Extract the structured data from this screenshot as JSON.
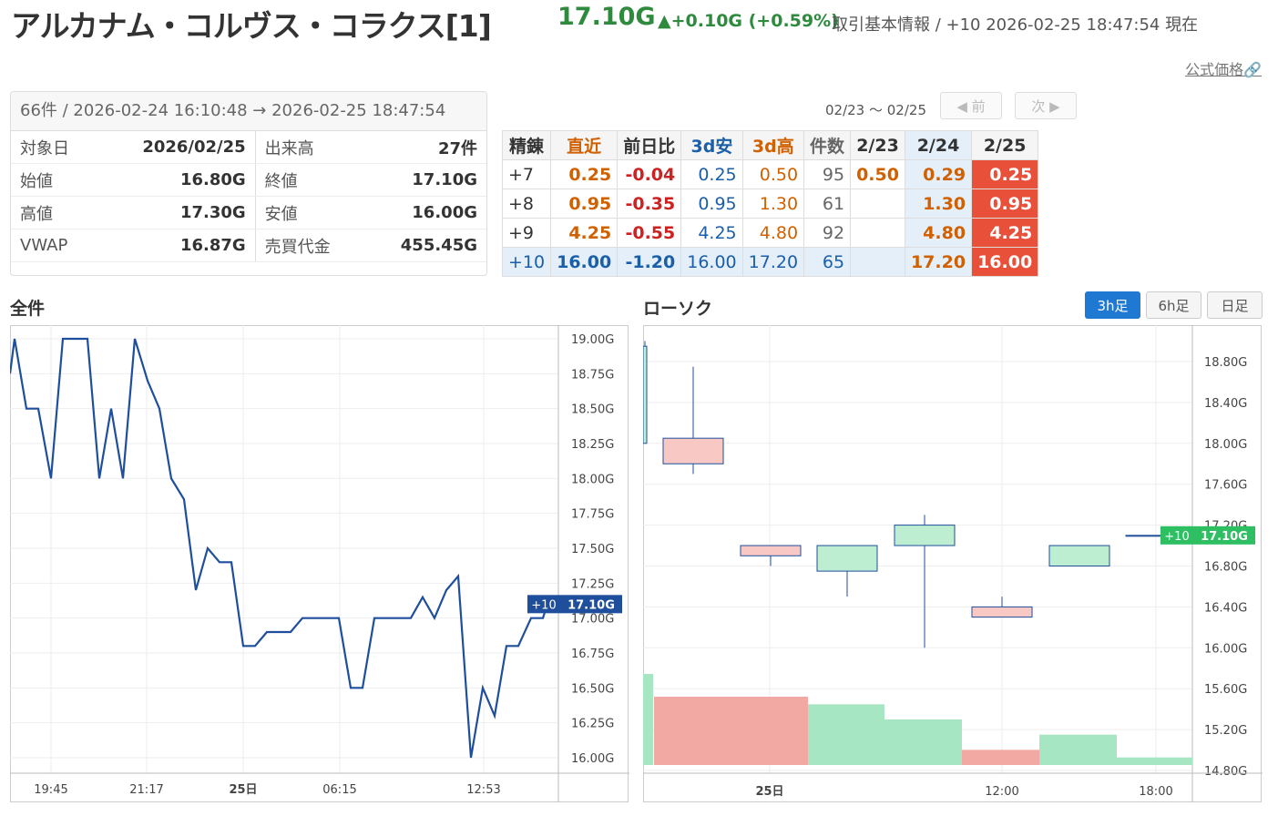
{
  "header": {
    "title": "アルカナム・コルヴス・コラクス[1]",
    "price": "17.10G",
    "change": "▲+0.10G (+0.59%)",
    "subinfo": "取引基本情報 / +10  2026-02-25 18:47:54 現在",
    "official_link": "公式価格🔗"
  },
  "summary": {
    "head": "66件 / 2026-02-24 16:10:48 → 2026-02-25 18:47:54",
    "rows": [
      {
        "l1": "対象日",
        "v1": "2026/02/25",
        "l2": "出来高",
        "v2": "27件"
      },
      {
        "l1": "始値",
        "v1": "16.80G",
        "l2": "終値",
        "v2": "17.10G"
      },
      {
        "l1": "高値",
        "v1": "17.30G",
        "l2": "安値",
        "v2": "16.00G"
      },
      {
        "l1": "VWAP",
        "v1": "16.87G",
        "l2": "売買代金",
        "v2": "455.45G"
      }
    ]
  },
  "refine": {
    "range": "02/23 〜 02/25",
    "prev": "◀ 前",
    "next": "次 ▶",
    "headers": [
      "精錬",
      "直近",
      "前日比",
      "3d安",
      "3d高",
      "件数",
      "2/23",
      "2/24",
      "2/25"
    ],
    "rows": [
      {
        "name": "+7",
        "recent": "0.25",
        "diff": "-0.04",
        "low": "0.25",
        "high": "0.50",
        "count": "95",
        "d1": "0.50",
        "d2": "0.29",
        "d3": "0.25"
      },
      {
        "name": "+8",
        "recent": "0.95",
        "diff": "-0.35",
        "low": "0.95",
        "high": "1.30",
        "count": "61",
        "d1": "",
        "d2": "1.30",
        "d3": "0.95"
      },
      {
        "name": "+9",
        "recent": "4.25",
        "diff": "-0.55",
        "low": "4.25",
        "high": "4.80",
        "count": "92",
        "d1": "",
        "d2": "4.80",
        "d3": "4.25"
      },
      {
        "name": "+10",
        "recent": "16.00",
        "diff": "-1.20",
        "low": "16.00",
        "high": "17.20",
        "count": "65",
        "d1": "",
        "d2": "17.20",
        "d3": "16.00"
      }
    ],
    "colors": {
      "orange": "#d06000",
      "red_cell": "#e8503a",
      "blue_cell": "#e4effa"
    }
  },
  "line_chart": {
    "title": "全件",
    "marker_tag": "+10",
    "marker_value": "17.10G",
    "y_ticks": [
      "19.00G",
      "18.75G",
      "18.50G",
      "18.25G",
      "18.00G",
      "17.75G",
      "17.50G",
      "17.25G",
      "17.00G",
      "16.75G",
      "16.50G",
      "16.25G",
      "16.00G"
    ],
    "x_ticks": [
      "19:45",
      "21:17",
      "25日",
      "06:15",
      "12:53"
    ]
  },
  "candle_chart": {
    "title": "ローソク",
    "tabs": [
      "3h足",
      "6h足",
      "日足"
    ],
    "active_tab": "3h足",
    "marker_tag": "+10",
    "marker_value": "17.10G",
    "y_ticks": [
      "18.80G",
      "18.40G",
      "18.00G",
      "17.60G",
      "17.20G",
      "16.80G",
      "16.40G",
      "16.00G",
      "15.60G",
      "15.20G",
      "14.80G"
    ],
    "x_ticks": [
      "25日",
      "12:00",
      "18:00"
    ]
  },
  "chart_data": [
    {
      "type": "line",
      "title": "全件",
      "ylim": [
        15.95,
        19.05
      ],
      "series": [
        {
          "values": [
            18.75,
            19.0,
            18.5,
            18.5,
            18.0,
            19.0,
            19.0,
            19.0,
            18.0,
            18.5,
            18.0,
            19.0,
            18.7,
            18.5,
            18.0,
            17.85,
            17.2,
            17.5,
            17.4,
            17.4,
            16.8,
            16.8,
            16.9,
            16.9,
            16.9,
            17.0,
            17.0,
            17.0,
            17.0,
            16.5,
            16.5,
            17.0,
            17.0,
            17.0,
            17.0,
            17.15,
            17.0,
            17.2,
            17.3,
            16.0,
            16.5,
            16.3,
            16.8,
            16.8,
            17.0,
            17.0,
            17.1
          ]
        }
      ]
    },
    {
      "type": "candlestick",
      "title": "ローソク",
      "ylim": [
        14.8,
        19.1
      ],
      "candles": [
        {
          "o": 18.0,
          "h": 19.0,
          "l": 18.0,
          "c": 18.95
        },
        {
          "o": 18.05,
          "h": 18.75,
          "l": 17.7,
          "c": 17.8
        },
        {
          "o": 17.0,
          "h": 17.0,
          "l": 16.8,
          "c": 16.9
        },
        {
          "o": 16.75,
          "h": 17.0,
          "l": 16.5,
          "c": 17.0
        },
        {
          "o": 17.0,
          "h": 17.3,
          "l": 16.0,
          "c": 17.2
        },
        {
          "o": 16.4,
          "h": 16.5,
          "l": 16.3,
          "c": 16.3
        },
        {
          "o": 16.8,
          "h": 17.0,
          "l": 16.8,
          "c": 17.0
        },
        {
          "o": 17.1,
          "h": 17.1,
          "l": 17.1,
          "c": 17.1
        }
      ],
      "volume": [
        12,
        9,
        9,
        8,
        6,
        2,
        4,
        1
      ]
    }
  ]
}
